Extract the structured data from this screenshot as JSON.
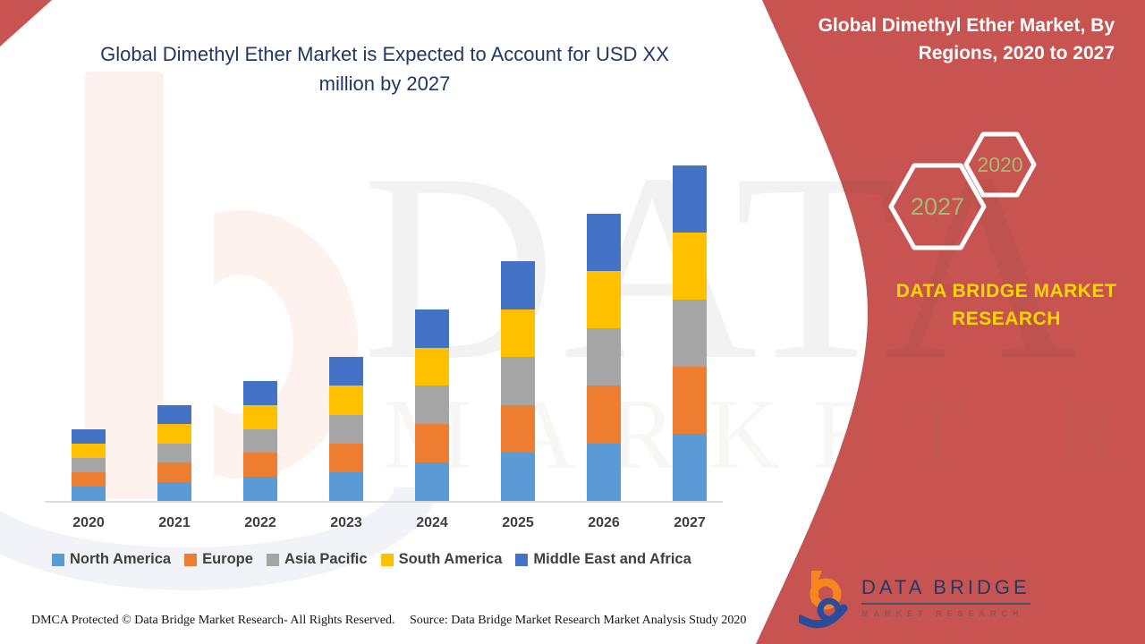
{
  "side_panel": {
    "title": "Global Dimethyl Ether Market, By Regions, 2020 to 2027",
    "hexagons": [
      {
        "label": "2027"
      },
      {
        "label": "2020"
      }
    ],
    "brand_text": "DATA BRIDGE MARKET RESEARCH",
    "accent_color": "#C75450",
    "hexagon_label_color": "#A6BA77",
    "brand_text_color": "#FFD600"
  },
  "logo": {
    "name": "DATA BRIDGE",
    "subtitle": "MARKET RESEARCH"
  },
  "watermark": {
    "line1": "DATA BRIDGE",
    "line2": "MARKET RESEARCH"
  },
  "footer": {
    "dmca": "DMCA Protected © Data Bridge Market Research- All Rights Reserved.",
    "source": "Source: Data Bridge Market Research Market Analysis Study 2020"
  },
  "chart_data": {
    "type": "bar",
    "stacked": true,
    "title": "Global Dimethyl Ether Market is Expected to Account for USD XX million by 2027",
    "categories": [
      "2020",
      "2021",
      "2022",
      "2023",
      "2024",
      "2025",
      "2026",
      "2027"
    ],
    "series": [
      {
        "name": "North America",
        "color": "#5B9BD5",
        "values": [
          3,
          4,
          5,
          6,
          8,
          10,
          12,
          14
        ]
      },
      {
        "name": "Europe",
        "color": "#ED7D31",
        "values": [
          3,
          4,
          5,
          6,
          8,
          10,
          12,
          14
        ]
      },
      {
        "name": "Asia Pacific",
        "color": "#A5A5A5",
        "values": [
          3,
          4,
          5,
          6,
          8,
          10,
          12,
          14
        ]
      },
      {
        "name": "South America",
        "color": "#FFC000",
        "values": [
          3,
          4,
          5,
          6,
          8,
          10,
          12,
          14
        ]
      },
      {
        "name": "Middle East and Africa",
        "color": "#4472C4",
        "values": [
          3,
          4,
          5,
          6,
          8,
          10,
          12,
          14
        ]
      }
    ],
    "totals": [
      15,
      20,
      25,
      30,
      40,
      50,
      60,
      70
    ],
    "xlabel": "",
    "ylabel": "",
    "ylim": [
      0,
      70
    ],
    "value_axis_shown": false,
    "units": "relative estimate (chart labels values only as USD XX million)",
    "grid": false,
    "legend_position": "bottom"
  }
}
